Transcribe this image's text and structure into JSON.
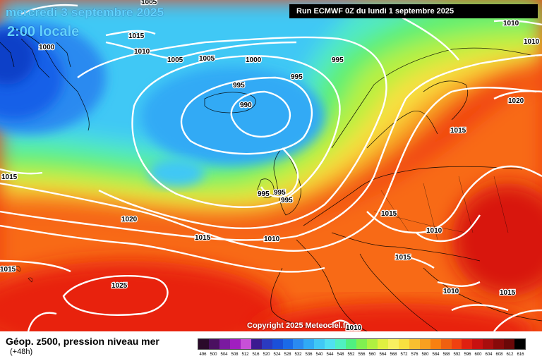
{
  "titles": {
    "date": "mercredi 3 septembre 2025",
    "time": "2:00 locale",
    "run": "Run ECMWF 0Z du lundi 1 septembre 2025",
    "product": "Géop. z500, pression niveau mer",
    "lead": "(+48h)",
    "copyright": "Copyright 2025 Meteociel.fr"
  },
  "colors": {
    "isobar": "#ffffff",
    "coastline": "#000000",
    "deep_low": "#1560e8",
    "high_core": "#f21a0c"
  },
  "color_scale": {
    "labels": [
      "496",
      "500",
      "504",
      "508",
      "512",
      "516",
      "520",
      "524",
      "528",
      "532",
      "536",
      "540",
      "544",
      "548",
      "552",
      "556",
      "560",
      "564",
      "568",
      "572",
      "576",
      "580",
      "584",
      "588",
      "592",
      "596",
      "600",
      "604",
      "608",
      "612",
      "616"
    ],
    "colors": [
      "#2a0a2a",
      "#4a1060",
      "#7a1aa0",
      "#a01ec0",
      "#c850d8",
      "#3a1a90",
      "#2a3ac0",
      "#1a50d8",
      "#1a6ae8",
      "#2a8af0",
      "#30aaf5",
      "#40c8f5",
      "#50e0f0",
      "#50f0c0",
      "#50f080",
      "#80f050",
      "#b0f040",
      "#e0f040",
      "#f8f060",
      "#f8e040",
      "#f8c030",
      "#f8a020",
      "#f88010",
      "#f06010",
      "#f04010",
      "#e02010",
      "#c81010",
      "#a80e0e",
      "#880a0a",
      "#6a0808",
      "#000000"
    ]
  },
  "isobars": [
    {
      "value": "1005",
      "contour": "1005"
    },
    {
      "value": "1015",
      "contour": "1015"
    },
    {
      "value": "1010",
      "contour": "1010"
    },
    {
      "value": "1000",
      "contour": "1000"
    },
    {
      "value": "1005",
      "contour": "1005"
    },
    {
      "value": "1005",
      "contour": "1005"
    },
    {
      "value": "1000",
      "contour": "1000"
    },
    {
      "value": "995",
      "contour": "995"
    },
    {
      "value": "995",
      "contour": "995"
    },
    {
      "value": "995",
      "contour": "995"
    },
    {
      "value": "990",
      "contour": "990"
    },
    {
      "value": "1010",
      "contour": "1010"
    },
    {
      "value": "1010",
      "contour": "1010"
    },
    {
      "value": "1020",
      "contour": "1020"
    },
    {
      "value": "1015",
      "contour": "1015"
    },
    {
      "value": "1015",
      "contour": "1015"
    },
    {
      "value": "995",
      "contour": "995"
    },
    {
      "value": "995",
      "contour": "995"
    },
    {
      "value": "995",
      "contour": "995"
    },
    {
      "value": "1015",
      "contour": "1015"
    },
    {
      "value": "1010",
      "contour": "1010"
    },
    {
      "value": "1020",
      "contour": "1020"
    },
    {
      "value": "1015",
      "contour": "1015"
    },
    {
      "value": "1010",
      "contour": "1010"
    },
    {
      "value": "1015",
      "contour": "1015"
    },
    {
      "value": "1015",
      "contour": "1015"
    },
    {
      "value": "1025",
      "contour": "1025"
    },
    {
      "value": "1010",
      "contour": "1010"
    },
    {
      "value": "1015",
      "contour": "1015"
    },
    {
      "value": "1010",
      "contour": "1010"
    }
  ]
}
